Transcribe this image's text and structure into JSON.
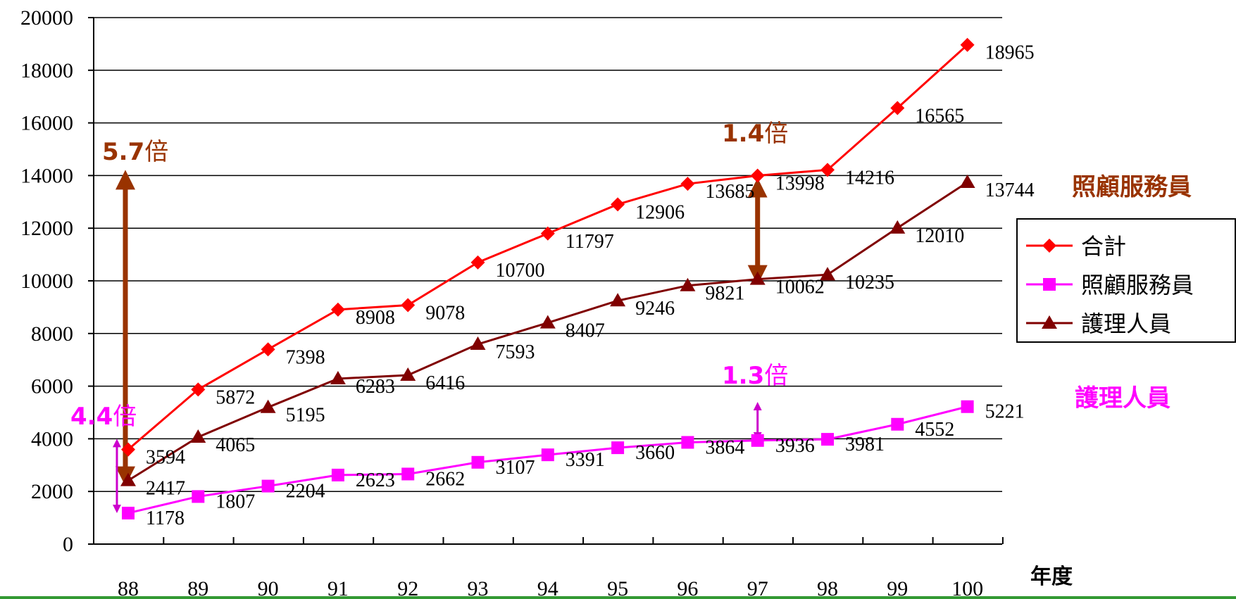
{
  "chart_data": {
    "type": "line",
    "x_unit_label": "年度",
    "categories": [
      "88",
      "89",
      "90",
      "91",
      "92",
      "93",
      "94",
      "95",
      "96",
      "97",
      "98",
      "99",
      "100"
    ],
    "ylim": [
      0,
      20000
    ],
    "yticks": [
      0,
      2000,
      4000,
      6000,
      8000,
      10000,
      12000,
      14000,
      16000,
      18000,
      20000
    ],
    "grid": true,
    "legend": "right",
    "series": [
      {
        "name": "合計",
        "color": "#ff0000",
        "marker": "diamond",
        "values": [
          3594,
          5872,
          7398,
          8908,
          9078,
          10700,
          11797,
          12906,
          13685,
          13998,
          14216,
          16565,
          18965
        ]
      },
      {
        "name": "照顧服務員",
        "color": "#ff00ff",
        "marker": "square",
        "values": [
          1178,
          1807,
          2204,
          2623,
          2662,
          3107,
          3391,
          3660,
          3864,
          3936,
          3981,
          4552,
          5221
        ]
      },
      {
        "name": "護理人員",
        "color": "#800000",
        "marker": "triangle",
        "values": [
          2417,
          4065,
          5195,
          6283,
          6416,
          7593,
          8407,
          9246,
          9821,
          10062,
          10235,
          12010,
          13744
        ]
      }
    ],
    "side_labels": [
      {
        "text": "照顧服務員",
        "color": "#993300"
      },
      {
        "text": "護理人員",
        "color": "#ff00ff"
      }
    ],
    "annotations": [
      {
        "number": "5.7",
        "suffix": "倍",
        "color": "#993300",
        "category": "88",
        "from": 2417,
        "to": 14000
      },
      {
        "number": "4.4",
        "suffix": "倍",
        "color": "#ff00ff",
        "category": "88",
        "from": 1178,
        "to": 4000
      },
      {
        "number": "1.4",
        "suffix": "倍",
        "color": "#993300",
        "category": "97",
        "from": 10062,
        "to": 13700
      },
      {
        "number": "1.3",
        "suffix": "倍",
        "color": "#ff00ff",
        "category": "97",
        "from": 3936,
        "to": 5400
      }
    ],
    "colors": {
      "grid": "#000000",
      "footer_rule": "#339933"
    }
  }
}
